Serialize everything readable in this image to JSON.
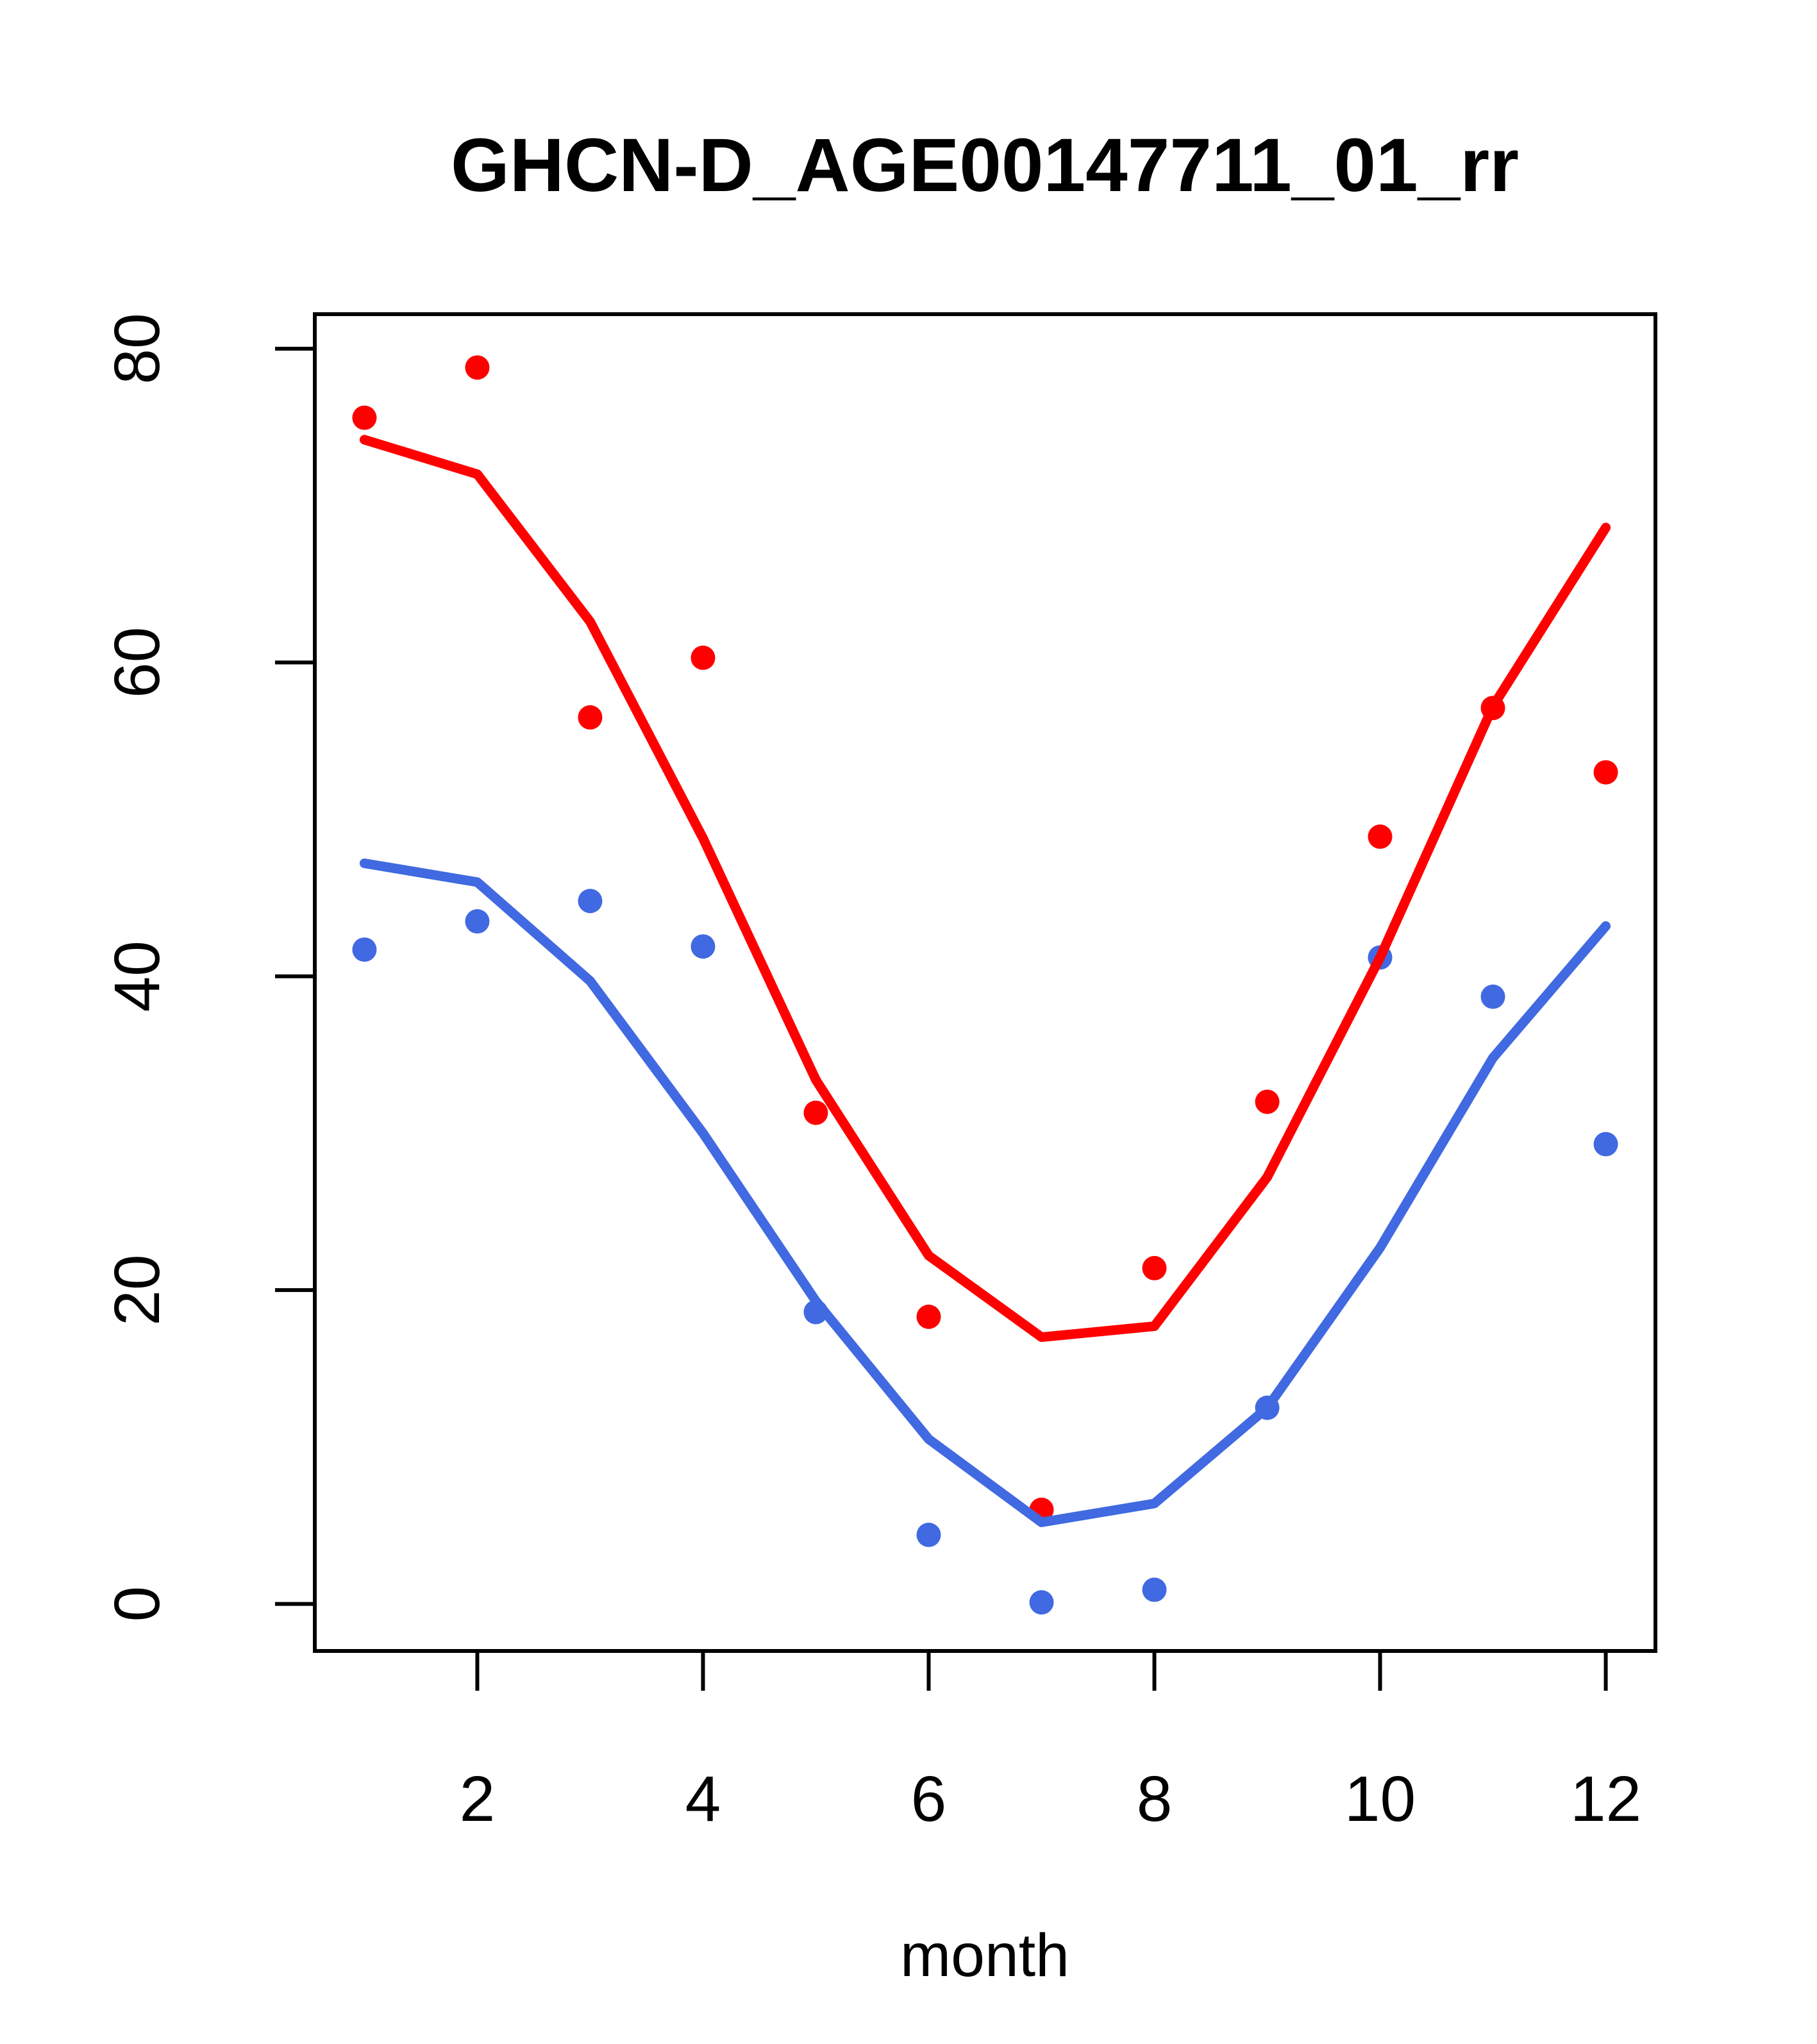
{
  "figure": {
    "background_color": "#ffffff",
    "axis_color": "#000000"
  },
  "chart_data": {
    "type": "scatter",
    "title": "GHCN-D_AGE00147711_01_rr",
    "xlabel": "month",
    "ylabel": "",
    "grid": false,
    "legend_position": "none",
    "x": [
      1,
      2,
      3,
      4,
      5,
      6,
      7,
      8,
      9,
      10,
      11,
      12
    ],
    "x_ticks": [
      2,
      4,
      6,
      8,
      10,
      12
    ],
    "y_ticks": [
      0,
      20,
      40,
      60,
      80
    ],
    "xlim": [
      0.56,
      12.44
    ],
    "ylim": [
      -3,
      82.2
    ],
    "series": [
      {
        "name": "red-observations",
        "type": "scatter",
        "color": "#ff0000",
        "marker": "filled-circle",
        "values": [
          75.6,
          78.8,
          56.5,
          60.3,
          31.3,
          18.3,
          6.0,
          21.4,
          32.0,
          48.9,
          57.1,
          53.0
        ]
      },
      {
        "name": "blue-observations",
        "type": "scatter",
        "color": "#4169e1",
        "marker": "filled-circle",
        "values": [
          41.7,
          43.5,
          44.8,
          41.9,
          18.6,
          4.4,
          0.1,
          0.9,
          12.5,
          41.2,
          38.7,
          29.3
        ]
      },
      {
        "name": "red-trend",
        "type": "line",
        "color": "#ff0000",
        "values": [
          74.2,
          72.0,
          62.6,
          48.8,
          33.4,
          22.2,
          17.0,
          17.7,
          27.2,
          41.2,
          57.2,
          68.6
        ]
      },
      {
        "name": "blue-trend",
        "type": "line",
        "color": "#4169e1",
        "values": [
          47.2,
          46.0,
          39.7,
          30.0,
          19.3,
          10.5,
          5.2,
          6.4,
          12.5,
          22.7,
          34.8,
          43.2
        ]
      }
    ]
  }
}
